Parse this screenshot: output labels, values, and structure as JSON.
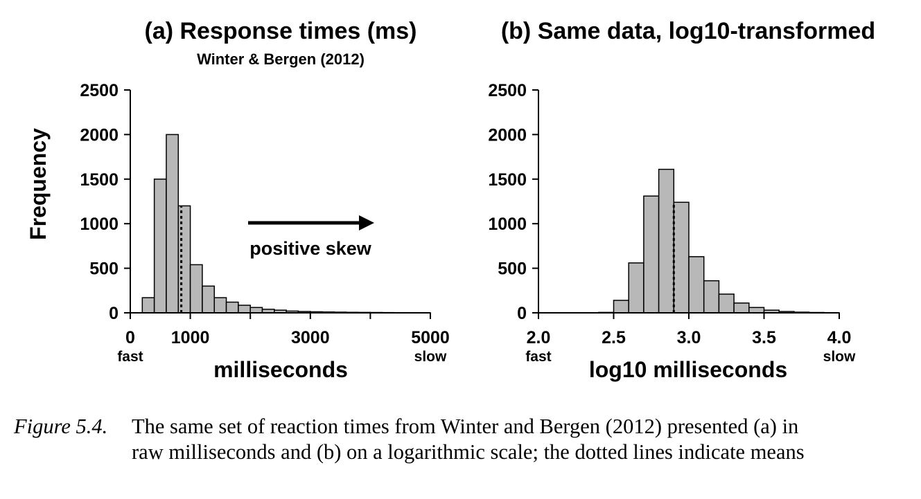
{
  "chart_data": [
    {
      "type": "bar",
      "title": "(a) Response times (ms)",
      "subtitle": "Winter & Bergen (2012)",
      "xlabel": "milliseconds",
      "ylabel": "Frequency",
      "xlim": [
        0,
        5000
      ],
      "ylim": [
        0,
        2500
      ],
      "xticks": [
        0,
        1000,
        3000,
        5000
      ],
      "xtick_labels": [
        "0",
        "1000",
        "3000",
        "5000"
      ],
      "yticks": [
        0,
        500,
        1000,
        1500,
        2000,
        2500
      ],
      "ytick_labels": [
        "0",
        "500",
        "1000",
        "1500",
        "2000",
        "2500"
      ],
      "x_note_left": "fast",
      "x_note_right": "slow",
      "bin_width": 200,
      "bin_starts": [
        200,
        400,
        600,
        800,
        1000,
        1200,
        1400,
        1600,
        1800,
        2000,
        2200,
        2400,
        2600,
        2800,
        3000,
        3200,
        3400,
        3600,
        3800,
        4000,
        4200,
        4400,
        4600,
        4800
      ],
      "values": [
        170,
        1500,
        2000,
        1200,
        540,
        300,
        170,
        120,
        85,
        60,
        40,
        30,
        20,
        15,
        12,
        10,
        8,
        6,
        5,
        4,
        3,
        2,
        2,
        1
      ],
      "mean": 850,
      "annotation": "positive skew"
    },
    {
      "type": "bar",
      "title": "(b) Same data, log10-transformed",
      "xlabel": "log10 milliseconds",
      "xlim": [
        2.0,
        4.0
      ],
      "ylim": [
        0,
        2500
      ],
      "xticks": [
        2.0,
        2.5,
        3.0,
        3.5,
        4.0
      ],
      "xtick_labels": [
        "2.0",
        "2.5",
        "3.0",
        "3.5",
        "4.0"
      ],
      "yticks": [
        0,
        500,
        1000,
        1500,
        2000,
        2500
      ],
      "ytick_labels": [
        "0",
        "500",
        "1000",
        "1500",
        "2000",
        "2500"
      ],
      "x_note_left": "fast",
      "x_note_right": "slow",
      "bin_width": 0.1,
      "bin_starts": [
        2.3,
        2.4,
        2.5,
        2.6,
        2.7,
        2.8,
        2.9,
        3.0,
        3.1,
        3.2,
        3.3,
        3.4,
        3.5,
        3.6,
        3.7,
        3.8,
        3.9
      ],
      "values": [
        2,
        5,
        140,
        560,
        1310,
        1610,
        1240,
        630,
        360,
        210,
        110,
        60,
        30,
        15,
        8,
        4,
        2
      ],
      "mean": 2.9
    }
  ],
  "caption": {
    "label": "Figure 5.4.",
    "line1": "The same set of reaction times from Winter and Bergen (2012) presented (a) in",
    "line2": "raw milliseconds and (b) on a logarithmic scale; the dotted lines indicate means"
  }
}
